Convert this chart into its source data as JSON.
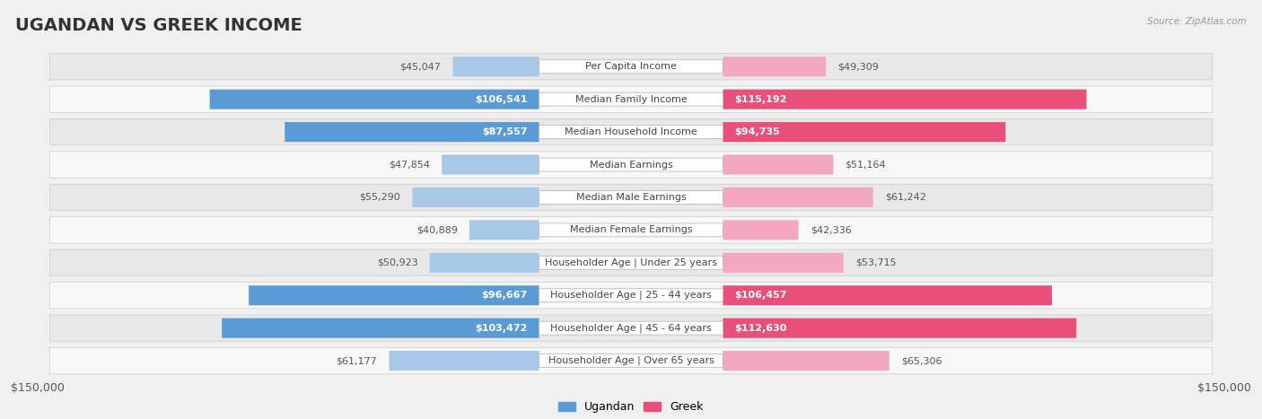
{
  "title": "UGANDAN VS GREEK INCOME",
  "source": "Source: ZipAtlas.com",
  "categories": [
    "Per Capita Income",
    "Median Family Income",
    "Median Household Income",
    "Median Earnings",
    "Median Male Earnings",
    "Median Female Earnings",
    "Householder Age | Under 25 years",
    "Householder Age | 25 - 44 years",
    "Householder Age | 45 - 64 years",
    "Householder Age | Over 65 years"
  ],
  "ugandan_values": [
    45047,
    106541,
    87557,
    47854,
    55290,
    40889,
    50923,
    96667,
    103472,
    61177
  ],
  "greek_values": [
    49309,
    115192,
    94735,
    51164,
    61242,
    42336,
    53715,
    106457,
    112630,
    65306
  ],
  "ugandan_color_light": "#a8c8e8",
  "ugandan_color_strong": "#5b9bd5",
  "greek_color_light": "#f4a8c0",
  "greek_color_strong": "#e8507a",
  "max_value": 150000,
  "bg_color": "#f0f0f0",
  "row_bg_even": "#e8e8e8",
  "row_bg_odd": "#f8f8f8",
  "strong_threshold": 75000,
  "legend_ugandan": "Ugandan",
  "legend_greek": "Greek",
  "title_fontsize": 14,
  "label_fontsize": 8,
  "value_fontsize": 8,
  "axis_fontsize": 9
}
